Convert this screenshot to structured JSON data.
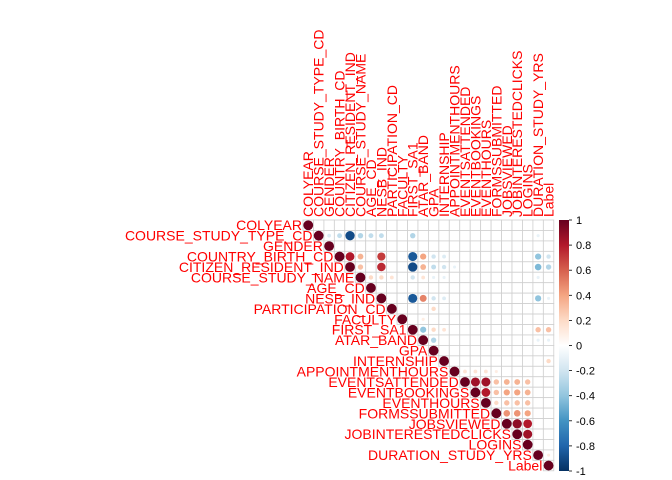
{
  "chart_data": {
    "type": "heatmap",
    "subtype": "correlation-matrix-upper",
    "marker": "circle",
    "variables": [
      "COLYEAR",
      "COURSE_STUDY_TYPE_CD",
      "GENDER",
      "COUNTRY_BIRTH_CD",
      "CITIZEN_RESIDENT_IND",
      "COURSE_STUDY_NAME",
      "AGE_CD",
      "NESB_IND",
      "PARTICIPATION_CD",
      "FACULTY",
      "FIRST_SA1",
      "ATAR_BAND",
      "GPA",
      "INTERNSHIP",
      "APPOINTMENTHOURS",
      "EVENTSATTENDED",
      "EVENTBOOKINGS",
      "EVENTHOURS",
      "FORMSSUBMITTED",
      "JOBSVIEWED",
      "JOBINTERESTEDCLICKS",
      "LOGINS",
      "DURATION_STUDY_YRS",
      "Label"
    ],
    "correlations": [
      [
        1,
        0,
        0,
        0,
        0,
        0,
        0,
        0,
        0,
        0,
        0,
        0,
        0,
        0,
        0,
        0,
        0,
        0,
        0,
        0,
        0,
        0,
        0,
        0
      ],
      [
        0,
        1,
        -0.15,
        -0.25,
        -0.9,
        -0.3,
        -0.25,
        -0.25,
        0,
        0,
        -0.3,
        0,
        0,
        0,
        0,
        0,
        0,
        0,
        0,
        0,
        0,
        0,
        -0.1,
        0
      ],
      [
        0,
        -0.15,
        1,
        0,
        0,
        0,
        0,
        0,
        0,
        0,
        0,
        0,
        0,
        0,
        0,
        0,
        0,
        0,
        0,
        0,
        0,
        0,
        0,
        0
      ],
      [
        0,
        -0.25,
        0,
        1,
        0.8,
        0.35,
        0,
        0.7,
        0,
        0,
        -0.85,
        0.4,
        -0.2,
        -0.15,
        0,
        0,
        0,
        0,
        0,
        0,
        0,
        0,
        -0.4,
        -0.2
      ],
      [
        0,
        -0.9,
        0,
        0.8,
        1,
        0.3,
        0,
        0.75,
        0,
        0,
        -0.9,
        0.35,
        -0.25,
        -0.2,
        -0.1,
        0,
        0,
        0,
        0,
        0,
        0,
        0,
        -0.45,
        -0.3
      ],
      [
        0,
        -0.3,
        0,
        0.35,
        0.3,
        1,
        0.2,
        0.2,
        0.15,
        0,
        -0.2,
        0.15,
        -0.1,
        -0.1,
        0,
        0,
        0,
        0,
        0,
        0,
        0,
        0,
        -0.1,
        0
      ],
      [
        0,
        -0.25,
        0,
        0,
        0,
        0.2,
        1,
        0,
        0,
        0,
        0,
        0,
        0,
        0,
        0,
        0,
        0,
        0,
        0,
        0,
        0,
        0,
        0,
        0
      ],
      [
        0,
        -0.25,
        0,
        0.7,
        0.75,
        0.2,
        0,
        1,
        0,
        0,
        -0.85,
        0.5,
        -0.2,
        -0.15,
        0,
        0,
        0,
        0,
        0,
        0,
        0,
        0,
        -0.4,
        -0.1
      ],
      [
        0,
        0,
        0,
        0,
        0,
        0.15,
        0,
        0,
        1,
        0,
        0,
        0,
        0.2,
        0,
        0,
        0,
        0,
        0,
        0,
        0,
        0,
        0,
        0,
        0
      ],
      [
        0,
        0,
        0,
        0,
        0,
        0,
        0,
        0,
        0,
        1,
        0,
        0.1,
        0,
        0,
        0,
        0,
        0,
        0,
        0,
        0,
        0,
        0,
        0,
        0
      ],
      [
        0,
        -0.3,
        0,
        -0.85,
        -0.9,
        -0.2,
        0,
        -0.85,
        0,
        0,
        1,
        -0.4,
        0.2,
        0.15,
        0,
        0,
        0,
        0,
        0,
        0,
        0,
        0,
        0.3,
        0.3
      ],
      [
        0,
        0,
        0,
        0.4,
        0.35,
        0.15,
        0,
        0.5,
        0,
        0.1,
        -0.4,
        1,
        -0.3,
        0,
        0,
        0,
        0,
        0,
        0,
        0,
        0,
        0,
        -0.1,
        -0.1
      ],
      [
        0,
        0,
        0,
        -0.2,
        -0.25,
        -0.1,
        0,
        -0.2,
        0.2,
        0,
        0.2,
        -0.3,
        1,
        0,
        0,
        0,
        0,
        0,
        0,
        0,
        0,
        0,
        0,
        0
      ],
      [
        0,
        0,
        0,
        -0.15,
        -0.2,
        -0.1,
        0,
        -0.15,
        0,
        0,
        0.15,
        0,
        0,
        1,
        0,
        0,
        0,
        0,
        0,
        0,
        0,
        0,
        0,
        0.2
      ],
      [
        0,
        0,
        0,
        0,
        -0.1,
        0,
        0,
        0,
        0,
        0,
        0,
        0,
        0,
        0,
        1,
        0.15,
        0.15,
        0.15,
        0.1,
        0,
        0,
        0,
        0,
        0
      ],
      [
        0,
        0,
        0,
        0,
        0,
        0,
        0,
        0,
        0,
        0,
        0,
        0,
        0,
        0,
        0.15,
        1,
        0.85,
        0.85,
        0.3,
        0.35,
        0.35,
        0.3,
        0,
        0
      ],
      [
        0,
        0,
        0,
        0,
        0,
        0,
        0,
        0,
        0,
        0,
        0,
        0,
        0,
        0,
        0.15,
        0.85,
        1,
        0.8,
        0.3,
        0.4,
        0.4,
        0.35,
        0,
        0
      ],
      [
        0,
        0,
        0,
        0,
        0,
        0,
        0,
        0,
        0,
        0,
        0,
        0,
        0,
        0,
        0.15,
        0.85,
        0.8,
        1,
        0.2,
        0.3,
        0.3,
        0.3,
        0,
        0
      ],
      [
        0,
        0,
        0,
        0,
        0,
        0,
        0,
        0,
        0,
        0,
        0,
        0,
        0,
        0,
        0.1,
        0.3,
        0.3,
        0.2,
        1,
        0.45,
        0.45,
        0.4,
        0,
        0
      ],
      [
        0,
        0,
        0,
        0,
        0,
        0,
        0,
        0,
        0,
        0,
        0,
        0,
        0,
        0,
        0,
        0.35,
        0.4,
        0.3,
        0.45,
        1,
        0.9,
        0.8,
        0,
        0
      ],
      [
        0,
        0,
        0,
        0,
        0,
        0,
        0,
        0,
        0,
        0,
        0,
        0,
        0,
        0,
        0,
        0.35,
        0.4,
        0.3,
        0.45,
        0.9,
        1,
        0.85,
        0,
        0
      ],
      [
        0,
        0,
        0,
        0,
        0,
        0,
        0,
        0,
        0,
        0,
        0,
        0,
        0,
        0,
        0,
        0.3,
        0.35,
        0.3,
        0.4,
        0.8,
        0.85,
        1,
        0,
        0
      ],
      [
        0,
        -0.1,
        0,
        -0.4,
        -0.45,
        -0.1,
        0,
        -0.4,
        0,
        0,
        0.3,
        -0.1,
        0,
        0,
        0,
        0,
        0,
        0,
        0,
        0,
        0,
        0,
        1,
        0.1
      ],
      [
        0,
        0,
        0,
        -0.2,
        -0.3,
        0,
        0,
        -0.1,
        0,
        0,
        0.3,
        -0.1,
        0,
        0.2,
        0,
        0,
        0,
        0,
        0,
        0,
        0,
        0,
        0.1,
        1
      ]
    ],
    "colorbar": {
      "range": [
        -1,
        1
      ],
      "tick_labels": [
        "1",
        "0.8",
        "0.6",
        "0.4",
        "0.2",
        "0",
        "-0.2",
        "-0.4",
        "-0.6",
        "-0.8",
        "-1"
      ],
      "colors": [
        "#67001F",
        "#B2182B",
        "#D6604D",
        "#F4A582",
        "#FDDBC7",
        "#FFFFFF",
        "#D1E5F0",
        "#92C5DE",
        "#4393C3",
        "#2166AC",
        "#053061"
      ]
    },
    "label_color": "#FF0000",
    "grid_color": "#CFCFCF"
  }
}
